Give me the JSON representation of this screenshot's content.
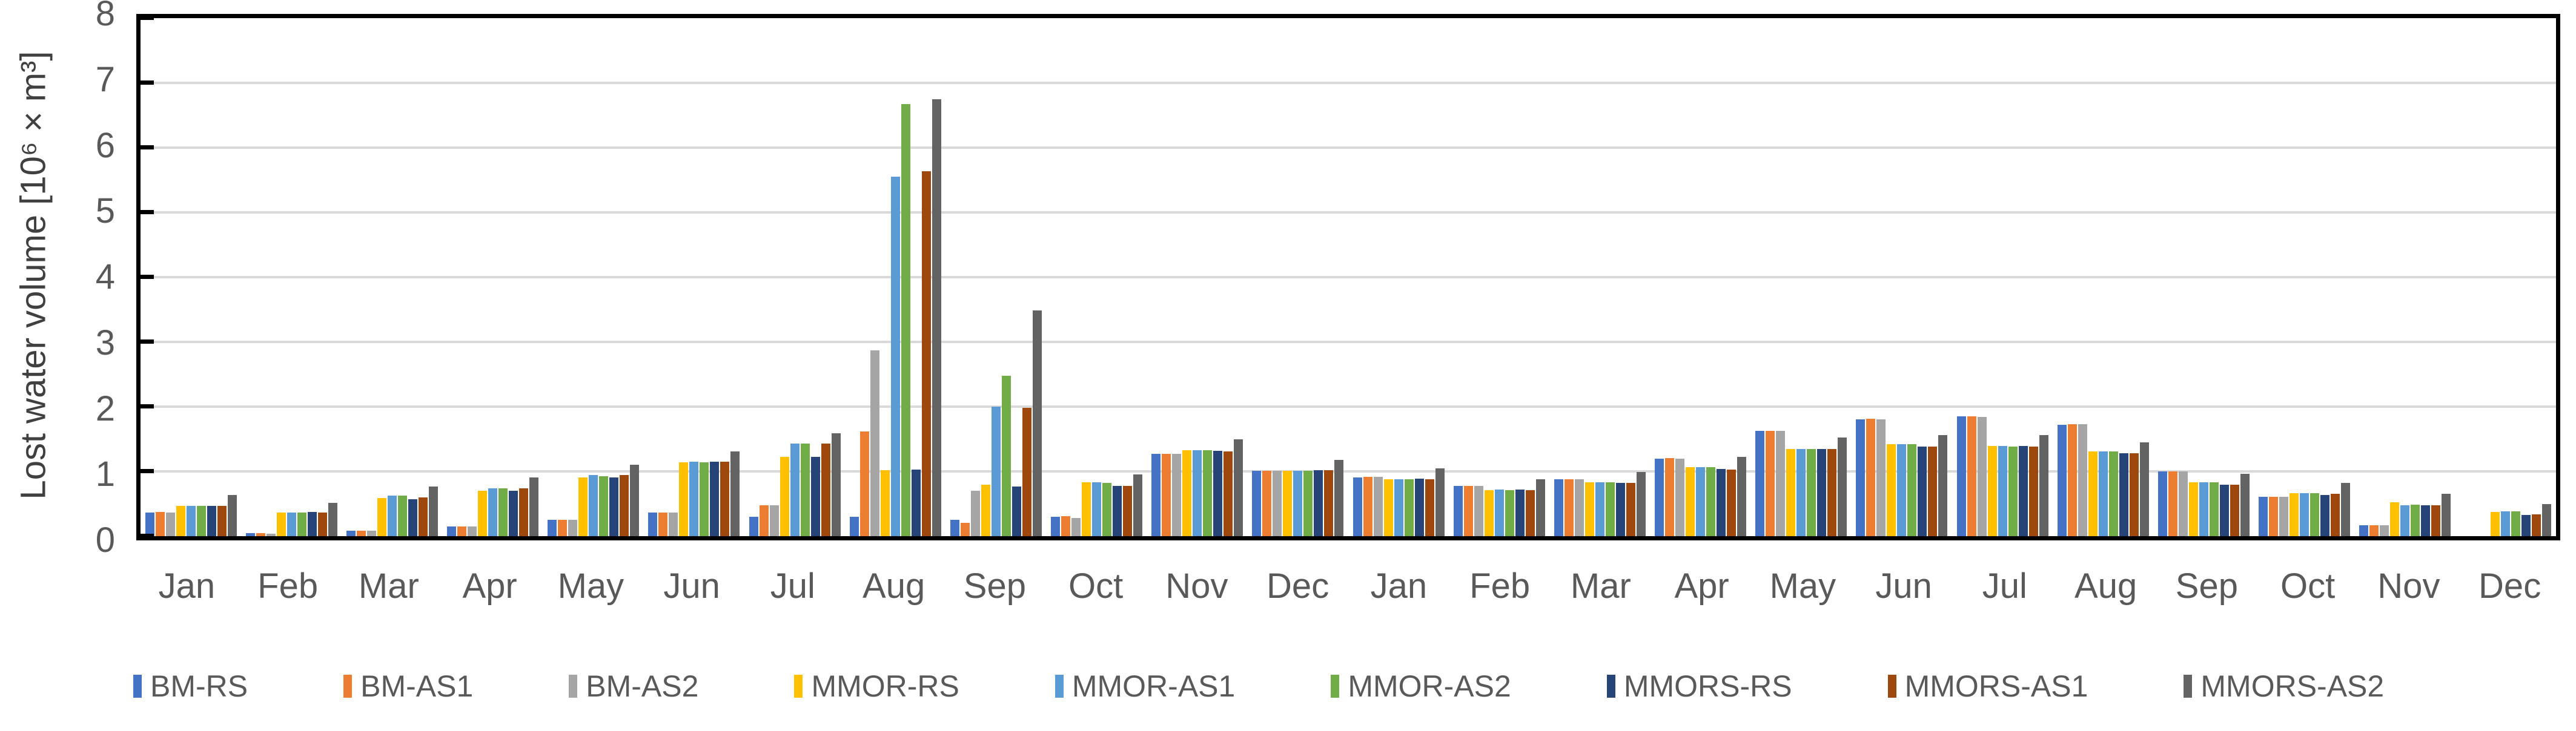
{
  "chart_data": {
    "type": "bar",
    "title": "",
    "xlabel": "",
    "ylabel": "Lost water volume [10⁶ × m³]",
    "ylim": [
      0,
      8
    ],
    "yticks": [
      0,
      1,
      2,
      3,
      4,
      5,
      6,
      7,
      8
    ],
    "grid": true,
    "legend_position": "bottom",
    "plot_border_color": "#000000",
    "gridline_color": "#d9d9d9",
    "axis_text_color": "#595959",
    "categories": [
      "Jan",
      "Feb",
      "Mar",
      "Apr",
      "May",
      "Jun",
      "Jul",
      "Aug",
      "Sep",
      "Oct",
      "Nov",
      "Dec",
      "Jan",
      "Feb",
      "Mar",
      "Apr",
      "May",
      "Jun",
      "Jul",
      "Aug",
      "Sep",
      "Oct",
      "Nov",
      "Dec"
    ],
    "series": [
      {
        "name": "BM-RS",
        "color": "#4472c4",
        "values": [
          0.36,
          0.05,
          0.08,
          0.15,
          0.25,
          0.36,
          0.3,
          0.3,
          0.25,
          0.3,
          1.27,
          1.01,
          0.91,
          0.78,
          0.88,
          1.2,
          1.63,
          1.8,
          1.85,
          1.72,
          1.0,
          0.61,
          0.17,
          0.0
        ]
      },
      {
        "name": "BM-AS1",
        "color": "#ed7d31",
        "values": [
          0.37,
          0.05,
          0.08,
          0.15,
          0.25,
          0.36,
          0.48,
          1.62,
          0.21,
          0.31,
          1.27,
          1.01,
          0.92,
          0.78,
          0.88,
          1.21,
          1.63,
          1.81,
          1.85,
          1.73,
          1.0,
          0.61,
          0.17,
          0.0
        ]
      },
      {
        "name": "BM-AS2",
        "color": "#a5a5a5",
        "values": [
          0.36,
          0.04,
          0.08,
          0.15,
          0.25,
          0.36,
          0.48,
          2.87,
          0.7,
          0.28,
          1.27,
          1.01,
          0.92,
          0.78,
          0.88,
          1.2,
          1.63,
          1.8,
          1.84,
          1.73,
          1.0,
          0.61,
          0.17,
          0.0
        ]
      },
      {
        "name": "MMOR-RS",
        "color": "#ffc000",
        "values": [
          0.47,
          0.36,
          0.59,
          0.7,
          0.91,
          1.14,
          1.22,
          1.02,
          0.79,
          0.83,
          1.33,
          1.01,
          0.88,
          0.71,
          0.83,
          1.07,
          1.35,
          1.42,
          1.39,
          1.31,
          0.83,
          0.66,
          0.52,
          0.37
        ]
      },
      {
        "name": "MMOR-AS1",
        "color": "#5b9bd5",
        "values": [
          0.47,
          0.36,
          0.63,
          0.74,
          0.94,
          1.15,
          1.43,
          5.55,
          2.0,
          0.83,
          1.33,
          1.01,
          0.88,
          0.72,
          0.83,
          1.07,
          1.35,
          1.42,
          1.39,
          1.31,
          0.83,
          0.66,
          0.48,
          0.38
        ]
      },
      {
        "name": "MMOR-AS2",
        "color": "#70ad47",
        "values": [
          0.47,
          0.36,
          0.63,
          0.74,
          0.93,
          1.14,
          1.43,
          6.67,
          2.48,
          0.82,
          1.33,
          1.01,
          0.88,
          0.71,
          0.83,
          1.07,
          1.35,
          1.42,
          1.38,
          1.31,
          0.83,
          0.66,
          0.49,
          0.38
        ]
      },
      {
        "name": "MMORS-RS",
        "color": "#264478",
        "values": [
          0.47,
          0.37,
          0.57,
          0.7,
          0.91,
          1.15,
          1.22,
          1.03,
          0.77,
          0.78,
          1.32,
          1.02,
          0.89,
          0.72,
          0.82,
          1.04,
          1.35,
          1.38,
          1.39,
          1.28,
          0.79,
          0.64,
          0.48,
          0.33
        ]
      },
      {
        "name": "MMORS-AS1",
        "color": "#9e480e",
        "values": [
          0.47,
          0.36,
          0.6,
          0.74,
          0.94,
          1.15,
          1.43,
          5.64,
          1.98,
          0.78,
          1.31,
          1.02,
          0.88,
          0.71,
          0.82,
          1.03,
          1.35,
          1.38,
          1.38,
          1.28,
          0.79,
          0.65,
          0.48,
          0.34
        ]
      },
      {
        "name": "MMORS-AS2",
        "color": "#636363",
        "values": [
          0.64,
          0.51,
          0.77,
          0.91,
          1.1,
          1.31,
          1.59,
          6.75,
          3.49,
          0.95,
          1.5,
          1.18,
          1.05,
          0.88,
          0.99,
          1.22,
          1.52,
          1.56,
          1.56,
          1.45,
          0.96,
          0.82,
          0.65,
          0.5
        ]
      }
    ]
  }
}
